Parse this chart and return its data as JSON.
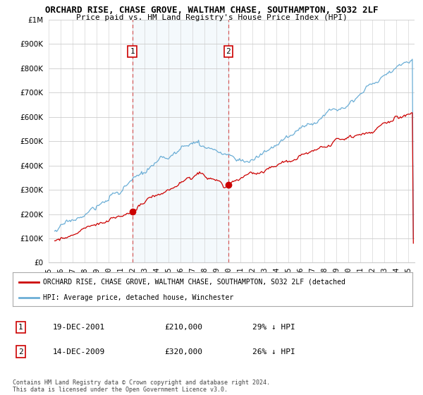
{
  "title": "ORCHARD RISE, CHASE GROVE, WALTHAM CHASE, SOUTHAMPTON, SO32 2LF",
  "subtitle": "Price paid vs. HM Land Registry's House Price Index (HPI)",
  "ytick_values": [
    0,
    100000,
    200000,
    300000,
    400000,
    500000,
    600000,
    700000,
    800000,
    900000,
    1000000
  ],
  "ylim": [
    0,
    1000000
  ],
  "xlim_start": 1995.3,
  "xlim_end": 2025.5,
  "sale1_date": 2001.97,
  "sale1_price": 210000,
  "sale2_date": 2009.97,
  "sale2_price": 320000,
  "hpi_line_color": "#6baed6",
  "price_line_color": "#cc0000",
  "sale_marker_color": "#cc0000",
  "vline_color": "#cc0000",
  "shade_color": "#d6e8f5",
  "grid_color": "#cccccc",
  "background_color": "#ffffff",
  "legend_text1": "ORCHARD RISE, CHASE GROVE, WALTHAM CHASE, SOUTHAMPTON, SO32 2LF (detached",
  "legend_text2": "HPI: Average price, detached house, Winchester",
  "annotation1_date": "19-DEC-2001",
  "annotation1_price": "£210,000",
  "annotation1_hpi": "29% ↓ HPI",
  "annotation2_date": "14-DEC-2009",
  "annotation2_price": "£320,000",
  "annotation2_hpi": "26% ↓ HPI",
  "footnote": "Contains HM Land Registry data © Crown copyright and database right 2024.\nThis data is licensed under the Open Government Licence v3.0."
}
